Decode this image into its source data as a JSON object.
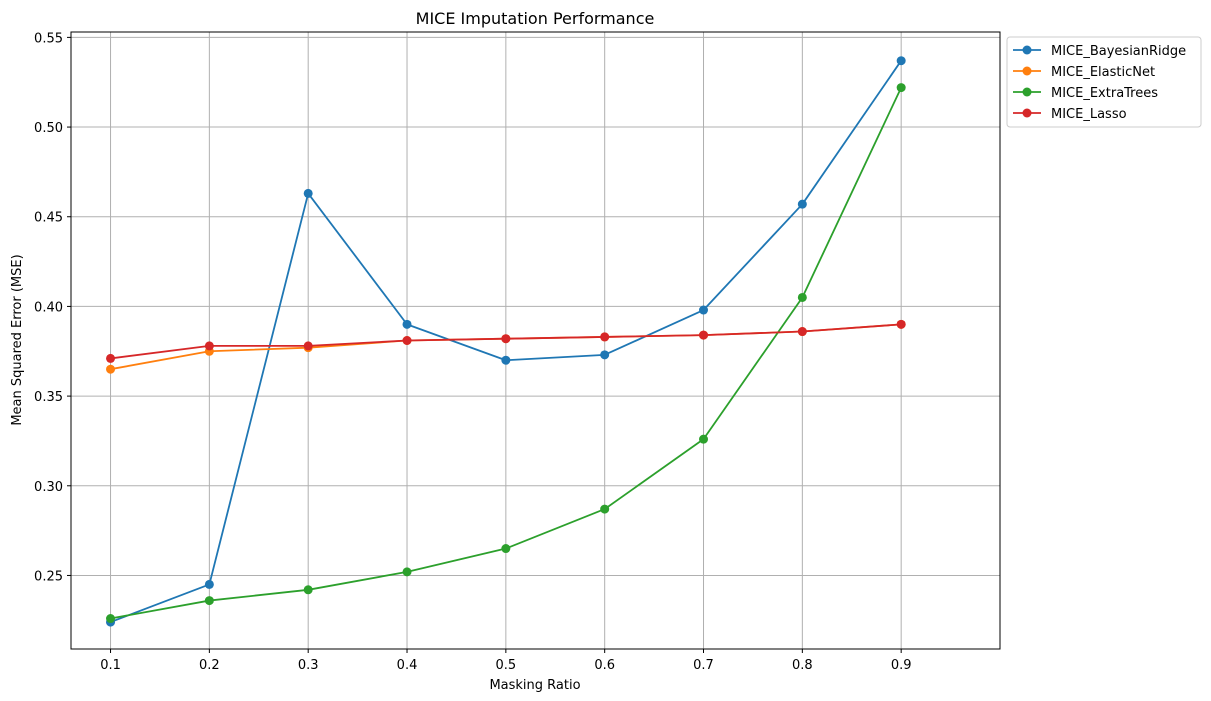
{
  "chart_data": {
    "type": "line",
    "title": "MICE Imputation Performance",
    "xlabel": "Masking Ratio",
    "ylabel": "Mean Squared Error (MSE)",
    "x": [
      0.1,
      0.2,
      0.3,
      0.4,
      0.5,
      0.6,
      0.7,
      0.8,
      0.9
    ],
    "x_ticks": [
      "0.1",
      "0.2",
      "0.3",
      "0.4",
      "0.5",
      "0.6",
      "0.7",
      "0.8",
      "0.9"
    ],
    "y_ticks": [
      "0.25",
      "0.30",
      "0.35",
      "0.40",
      "0.45",
      "0.50",
      "0.55"
    ],
    "xlim": [
      0.06,
      1.0
    ],
    "ylim": [
      0.209,
      0.553
    ],
    "grid": true,
    "legend_position": "outside-top-right",
    "series": [
      {
        "name": "MICE_BayesianRidge",
        "color": "#1f77b4",
        "values": [
          0.224,
          0.245,
          0.463,
          0.39,
          0.37,
          0.373,
          0.398,
          0.457,
          0.537
        ]
      },
      {
        "name": "MICE_ElasticNet",
        "color": "#ff7f0e",
        "values": [
          0.365,
          0.375,
          0.377,
          0.381,
          0.382,
          0.383,
          0.384,
          0.386,
          0.39
        ]
      },
      {
        "name": "MICE_ExtraTrees",
        "color": "#2ca02c",
        "values": [
          0.226,
          0.236,
          0.242,
          0.252,
          0.265,
          0.287,
          0.326,
          0.405,
          0.522
        ]
      },
      {
        "name": "MICE_Lasso",
        "color": "#d62728",
        "values": [
          0.371,
          0.378,
          0.378,
          0.381,
          0.382,
          0.383,
          0.384,
          0.386,
          0.39
        ]
      }
    ]
  }
}
